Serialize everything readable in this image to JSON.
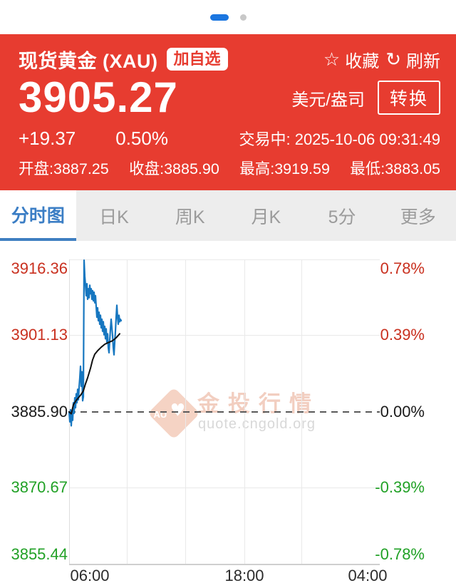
{
  "carousel": {
    "count": 2,
    "active_index": 0
  },
  "header": {
    "title": "现货黄金 (XAU)",
    "add_watchlist_label": "加自选",
    "star_icon": "star-outline",
    "favorite_label": "收藏",
    "refresh_icon": "refresh-arrows",
    "refresh_label": "刷新",
    "price": "3905.27",
    "change": "+19.37",
    "change_percent": "0.50%",
    "unit": "美元/盎司",
    "convert_label": "转换",
    "trading_status": "交易中: 2025-10-06 09:31:49",
    "stats": [
      {
        "label": "开盘",
        "value": "3887.25"
      },
      {
        "label": "收盘",
        "value": "3885.90"
      },
      {
        "label": "最高",
        "value": "3919.59"
      },
      {
        "label": "最低",
        "value": "3883.05"
      }
    ]
  },
  "tabs": [
    {
      "label": "分时图",
      "active": true
    },
    {
      "label": "日K",
      "active": false
    },
    {
      "label": "周K",
      "active": false
    },
    {
      "label": "月K",
      "active": false
    },
    {
      "label": "5分",
      "active": false
    },
    {
      "label": "更多",
      "active": false
    }
  ],
  "watermark": {
    "logo_text": "AU",
    "brand": "金投行情",
    "url": "quote.cngold.org"
  },
  "colors": {
    "header_red": "#e73c30",
    "accent_blue": "#3f7fc1",
    "carousel_blue": "#1b76e0",
    "up_red": "#c9301f",
    "down_green": "#21a126",
    "price_line": "#1777c0",
    "average_line": "#111111"
  },
  "chart_data": {
    "type": "line",
    "x_axis": {
      "labels": [
        "06:00",
        "18:00",
        "04:00"
      ]
    },
    "y_axis": {
      "left_labels": [
        "3916.36",
        "3901.13",
        "3885.90",
        "3870.67",
        "3855.44"
      ],
      "right_labels": [
        "0.78%",
        "0.39%",
        "0.00%",
        "-0.39%",
        "-0.78%"
      ],
      "top_value": 3916.36,
      "bottom_value": 3855.44,
      "base_value": 3885.9
    },
    "series": [
      {
        "name": "price",
        "color": "#1777c0",
        "width": 2.2,
        "points": [
          [
            97,
            3885.9
          ],
          [
            98,
            3883.9
          ],
          [
            99,
            3886.3
          ],
          [
            100,
            3883.1
          ],
          [
            101,
            3885.9
          ],
          [
            102,
            3884.2
          ],
          [
            103,
            3887.7
          ],
          [
            104,
            3885.6
          ],
          [
            105,
            3888.7
          ],
          [
            106,
            3886.7
          ],
          [
            107,
            3889.5
          ],
          [
            108,
            3887.7
          ],
          [
            109,
            3890.4
          ],
          [
            110,
            3888.3
          ],
          [
            111,
            3890.8
          ],
          [
            112,
            3892.6
          ],
          [
            113,
            3895.0
          ],
          [
            114,
            3891.0
          ],
          [
            115,
            3893.9
          ],
          [
            116,
            3888.1
          ],
          [
            117,
            3888.9
          ],
          [
            118,
            3916.2
          ],
          [
            119,
            3913.0
          ],
          [
            120,
            3911.2
          ],
          [
            121,
            3909.1
          ],
          [
            122,
            3911.5
          ],
          [
            123,
            3908.4
          ],
          [
            124,
            3910.5
          ],
          [
            125,
            3908.7
          ],
          [
            126,
            3911.2
          ],
          [
            127,
            3909.5
          ],
          [
            128,
            3910.5
          ],
          [
            129,
            3908.4
          ],
          [
            130,
            3910.1
          ],
          [
            131,
            3908.1
          ],
          [
            132,
            3909.8
          ],
          [
            133,
            3907.7
          ],
          [
            134,
            3909.1
          ],
          [
            135,
            3906.9
          ],
          [
            136,
            3904.8
          ],
          [
            137,
            3906.7
          ],
          [
            138,
            3904.1
          ],
          [
            139,
            3905.8
          ],
          [
            140,
            3903.4
          ],
          [
            141,
            3905.2
          ],
          [
            142,
            3902.7
          ],
          [
            143,
            3904.4
          ],
          [
            144,
            3902.0
          ],
          [
            145,
            3903.9
          ],
          [
            146,
            3901.3
          ],
          [
            147,
            3903.0
          ],
          [
            148,
            3900.5
          ],
          [
            149,
            3902.5
          ],
          [
            150,
            3899.8
          ],
          [
            151,
            3901.5
          ],
          [
            152,
            3898.7
          ],
          [
            153,
            3897.7
          ],
          [
            154,
            3900.1
          ],
          [
            155,
            3902.5
          ],
          [
            156,
            3904.4
          ],
          [
            157,
            3902.7
          ],
          [
            158,
            3901.1
          ],
          [
            159,
            3898.7
          ],
          [
            160,
            3897.3
          ],
          [
            161,
            3899.8
          ],
          [
            162,
            3902.0
          ],
          [
            163,
            3904.8
          ],
          [
            164,
            3907.2
          ],
          [
            165,
            3904.8
          ],
          [
            166,
            3903.4
          ],
          [
            167,
            3905.2
          ],
          [
            168,
            3903.9
          ],
          [
            169,
            3904.4
          ],
          [
            170,
            3904.1
          ]
        ]
      },
      {
        "name": "average",
        "color": "#111111",
        "width": 2,
        "points": [
          [
            97,
            3885.9
          ],
          [
            100,
            3885.5
          ],
          [
            103,
            3887.3
          ],
          [
            107,
            3888.2
          ],
          [
            110,
            3888.7
          ],
          [
            114,
            3889.4
          ],
          [
            117,
            3890.1
          ],
          [
            120,
            3891.5
          ],
          [
            123,
            3892.7
          ],
          [
            127,
            3894.6
          ],
          [
            130,
            3896.3
          ],
          [
            133,
            3897.4
          ],
          [
            137,
            3898.1
          ],
          [
            142,
            3898.8
          ],
          [
            147,
            3899.4
          ],
          [
            153,
            3899.8
          ],
          [
            158,
            3900.1
          ],
          [
            163,
            3900.7
          ],
          [
            168,
            3901.5
          ]
        ]
      }
    ]
  }
}
